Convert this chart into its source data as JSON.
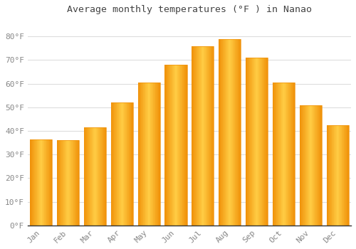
{
  "title": "Average monthly temperatures (°F ) in Nanao",
  "months": [
    "Jan",
    "Feb",
    "Mar",
    "Apr",
    "May",
    "Jun",
    "Jul",
    "Aug",
    "Sep",
    "Oct",
    "Nov",
    "Dec"
  ],
  "values": [
    36.5,
    36.0,
    41.5,
    52.0,
    60.5,
    68.0,
    76.0,
    79.0,
    71.0,
    60.5,
    51.0,
    42.5
  ],
  "bar_color_center": "#FFCC44",
  "bar_color_edge": "#F0920A",
  "background_color": "#FFFFFF",
  "plot_background_color": "#FFFFFF",
  "grid_color": "#DDDDDD",
  "tick_label_color": "#888888",
  "title_color": "#444444",
  "ylim": [
    0,
    87
  ],
  "yticks": [
    0,
    10,
    20,
    30,
    40,
    50,
    60,
    70,
    80
  ],
  "ytick_labels": [
    "0°F",
    "10°F",
    "20°F",
    "30°F",
    "40°F",
    "50°F",
    "60°F",
    "70°F",
    "80°F"
  ],
  "bar_width": 0.82,
  "figsize": [
    5.0,
    3.5
  ],
  "dpi": 100
}
